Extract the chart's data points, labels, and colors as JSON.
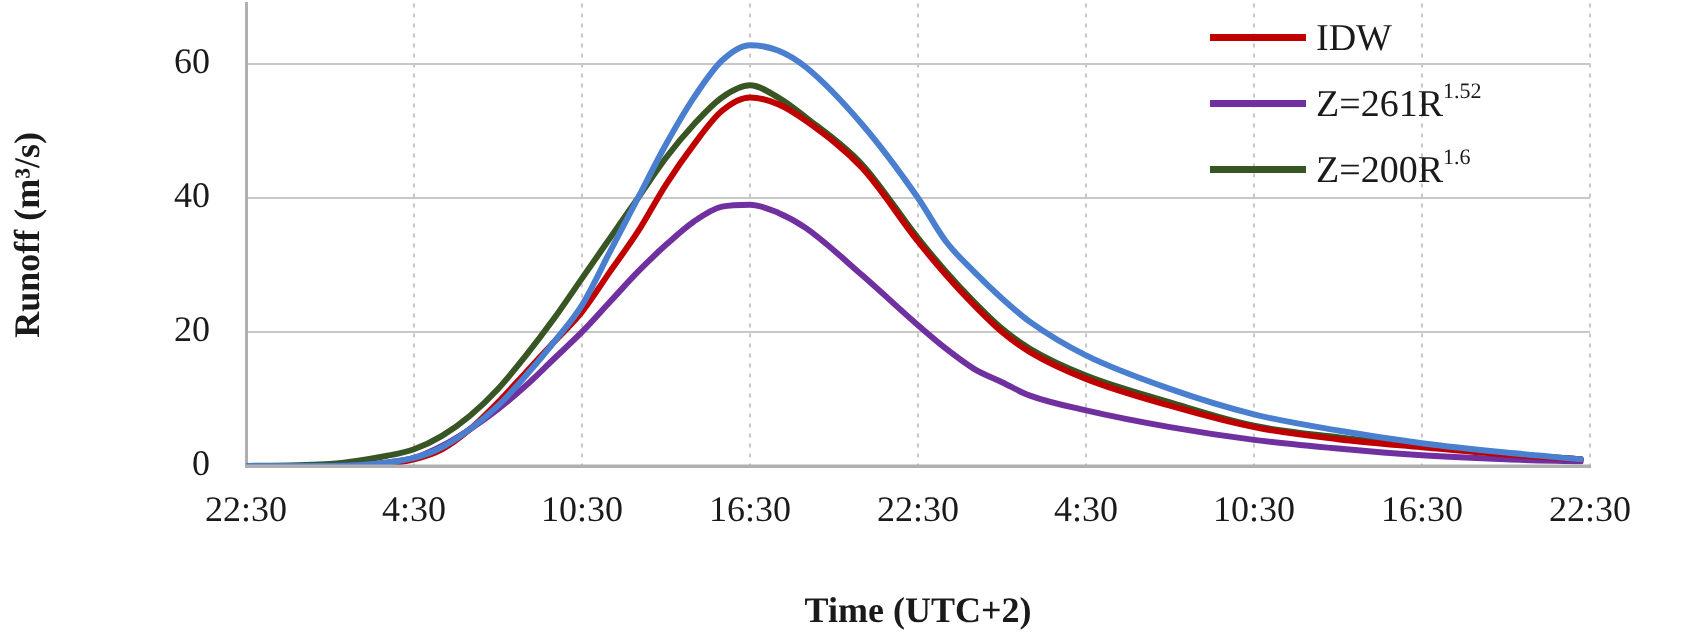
{
  "chart_data": {
    "type": "line",
    "xlabel": "Time (UTC+2)",
    "ylabel": "Runoff (m³/s)",
    "x": [
      "--01-01T22:30",
      "--01-02T01:30",
      "--01-02T03:30",
      "--01-02T04:30",
      "--01-02T05:30",
      "--01-02T06:30",
      "--01-02T07:30",
      "--01-02T08:30",
      "--01-02T09:30",
      "--01-02T10:30",
      "--01-02T11:30",
      "--01-02T12:30",
      "--01-02T13:30",
      "--01-02T14:30",
      "--01-02T15:30",
      "--01-02T16:30",
      "--01-02T17:30",
      "--01-02T18:30",
      "--01-02T20:30",
      "--01-02T22:30",
      "--01-02T23:30",
      "--01-03T00:30",
      "--01-03T01:30",
      "--01-03T02:30",
      "--01-03T04:30",
      "--01-03T07:30",
      "--01-03T10:30",
      "--01-03T13:30",
      "--01-03T16:30",
      "--01-03T19:30",
      "--01-03T22:10"
    ],
    "series": [
      {
        "color": "#4a7fd0",
        "values": [
          0,
          0,
          0.5,
          1.2,
          2.8,
          5.5,
          9,
          13.5,
          18.5,
          24,
          32,
          40,
          48,
          55,
          60.5,
          62.8,
          62,
          59.5,
          51,
          40,
          33.5,
          29,
          25,
          21.5,
          16.5,
          11.5,
          7.7,
          5.3,
          3.4,
          2,
          1
        ]
      },
      {
        "name": "IDW",
        "color": "#c00000",
        "values": [
          0,
          0,
          0.3,
          1,
          2.5,
          5.5,
          9.5,
          14,
          18.5,
          23,
          29,
          35,
          42,
          48,
          53,
          55,
          54,
          51.5,
          44.5,
          33.5,
          28.5,
          24,
          20,
          17,
          13,
          9,
          5.8,
          4,
          2.8,
          1.7,
          1
        ]
      },
      {
        "name": "Z=261R$^{1.52}$",
        "color": "#7030a0",
        "values": [
          0,
          0,
          0.5,
          1.2,
          3,
          5.5,
          8.5,
          12,
          16,
          20,
          24.5,
          29,
          33,
          36.5,
          38.7,
          39,
          37.8,
          35.5,
          28.5,
          21,
          17.5,
          14.5,
          12.5,
          10.5,
          8.3,
          5.8,
          3.9,
          2.6,
          1.6,
          1,
          0.7
        ]
      },
      {
        "name": "Z=200R$^{1.6}$",
        "color": "#375623",
        "values": [
          0,
          0.3,
          1.5,
          2.5,
          4.5,
          7.5,
          11.5,
          16.5,
          22,
          28,
          34,
          40,
          46,
          51,
          55,
          56.8,
          55,
          52,
          45,
          34,
          29,
          24.5,
          20.5,
          17.5,
          13.5,
          9.5,
          6,
          4.3,
          3,
          1.8,
          1
        ]
      }
    ],
    "xlim": [
      "--01-01T22:30",
      "--01-03T22:30"
    ],
    "xticks": [
      {
        "value": "--01-01T22:30",
        "label": "22:30"
      },
      {
        "value": "--01-02T04:30",
        "label": "4:30"
      },
      {
        "value": "--01-02T10:30",
        "label": "10:30"
      },
      {
        "value": "--01-02T16:30",
        "label": "16:30"
      },
      {
        "value": "--01-02T22:30",
        "label": "22:30"
      },
      {
        "value": "--01-03T04:30",
        "label": "4:30"
      },
      {
        "value": "--01-03T10:30",
        "label": "10:30"
      },
      {
        "value": "--01-03T16:30",
        "label": "16:30"
      },
      {
        "value": "--01-03T22:30",
        "label": "22:30"
      }
    ],
    "ylim": [
      0,
      69
    ],
    "yticks": [
      0,
      20,
      40,
      60
    ],
    "grid": true,
    "legend": "top right",
    "marker": "none",
    "line_style": "solid"
  }
}
